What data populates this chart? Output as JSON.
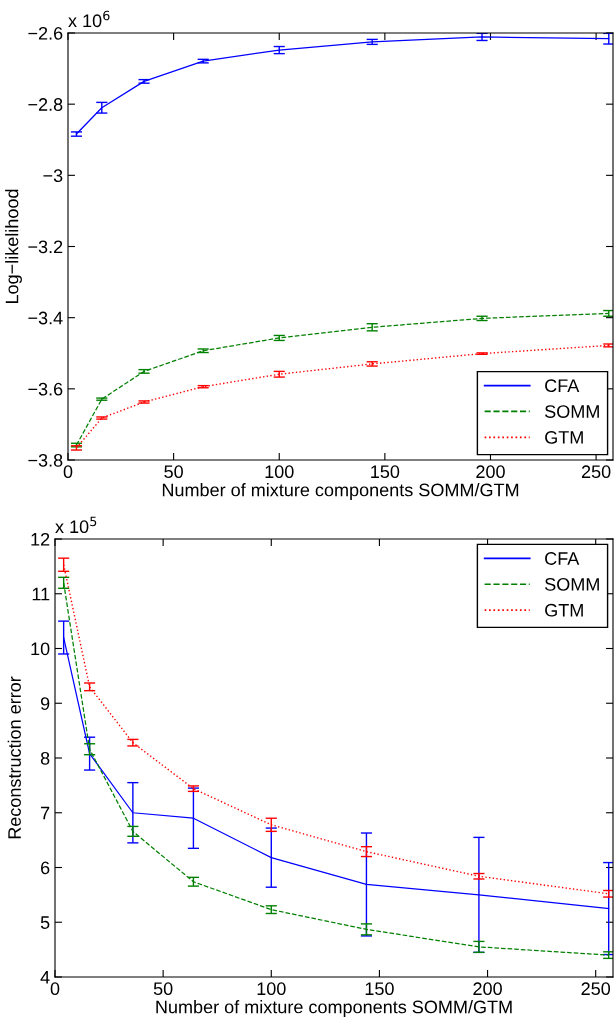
{
  "chart_data": [
    {
      "type": "line",
      "xlabel": "Number of mixture components SOMM/GTM",
      "ylabel": "Log−likelihood",
      "annotations": [
        "x 10$^{6}$"
      ],
      "x": [
        4,
        16,
        36,
        64,
        100,
        144,
        196,
        256
      ],
      "xlim": [
        0,
        258
      ],
      "xticks": [
        0,
        50,
        100,
        150,
        200,
        250
      ],
      "ylim": [
        -3.8,
        -2.6
      ],
      "yticks": [
        {
          "value": -3.8,
          "label": "−3.8"
        },
        {
          "value": -3.6,
          "label": "−3.6"
        },
        {
          "value": -3.4,
          "label": "−3.4"
        },
        {
          "value": -3.2,
          "label": "−3.2"
        },
        {
          "value": -3.0,
          "label": "−3"
        },
        {
          "value": -2.8,
          "label": "−2.8"
        },
        {
          "value": -2.6,
          "label": "−2.6"
        }
      ],
      "legend": "bottom right",
      "grid": false,
      "series": [
        {
          "name": "CFA",
          "color": "#0000ff",
          "line_style": "solid",
          "values": [
            -2.884,
            -2.81,
            -2.736,
            -2.679,
            -2.648,
            -2.625,
            -2.611,
            -2.616
          ],
          "errors": [
            0.006,
            0.015,
            0.005,
            0.005,
            0.01,
            0.007,
            0.01,
            0.015
          ]
        },
        {
          "name": "SOMM",
          "color": "#008000",
          "line_style": "dashed",
          "values": [
            -3.758,
            -3.629,
            -3.551,
            -3.493,
            -3.457,
            -3.427,
            -3.402,
            -3.388
          ],
          "errors": [
            0.005,
            0.003,
            0.005,
            0.005,
            0.007,
            0.01,
            0.006,
            0.008
          ]
        },
        {
          "name": "GTM",
          "color": "#ff0000",
          "line_style": "dotted",
          "values": [
            -3.766,
            -3.682,
            -3.637,
            -3.594,
            -3.559,
            -3.53,
            -3.501,
            -3.478
          ],
          "errors": [
            0.006,
            0.003,
            0.003,
            0.003,
            0.008,
            0.006,
            0.002,
            0.004
          ]
        }
      ]
    },
    {
      "type": "line",
      "xlabel": "Number of mixture components SOMM/GTM",
      "ylabel": "Reconstruction error",
      "annotations": [
        "x 10$^{5}$"
      ],
      "x": [
        4,
        16,
        36,
        64,
        100,
        144,
        196,
        256
      ],
      "xlim": [
        0,
        258
      ],
      "xticks": [
        0,
        50,
        100,
        150,
        200,
        250
      ],
      "ylim": [
        4,
        12
      ],
      "yticks": [
        4,
        5,
        6,
        7,
        8,
        9,
        10,
        11,
        12
      ],
      "legend": "top right",
      "grid": false,
      "series": [
        {
          "name": "CFA",
          "color": "#0000ff",
          "line_style": "solid",
          "values": [
            10.2,
            8.08,
            7.0,
            6.9,
            6.18,
            5.69,
            5.5,
            5.25
          ],
          "errors": [
            0.3,
            0.3,
            0.55,
            0.55,
            0.54,
            0.94,
            1.05,
            0.84
          ]
        },
        {
          "name": "SOMM",
          "color": "#008000",
          "line_style": "dashed",
          "values": [
            11.2,
            8.16,
            6.66,
            5.74,
            5.23,
            4.87,
            4.55,
            4.4
          ],
          "errors": [
            0.1,
            0.1,
            0.09,
            0.08,
            0.07,
            0.1,
            0.1,
            0.06
          ]
        },
        {
          "name": "GTM",
          "color": "#ff0000",
          "line_style": "dotted",
          "values": [
            11.53,
            9.3,
            8.28,
            7.44,
            6.78,
            6.29,
            5.84,
            5.52
          ],
          "errors": [
            0.12,
            0.07,
            0.06,
            0.05,
            0.12,
            0.09,
            0.05,
            0.06
          ]
        }
      ]
    }
  ]
}
